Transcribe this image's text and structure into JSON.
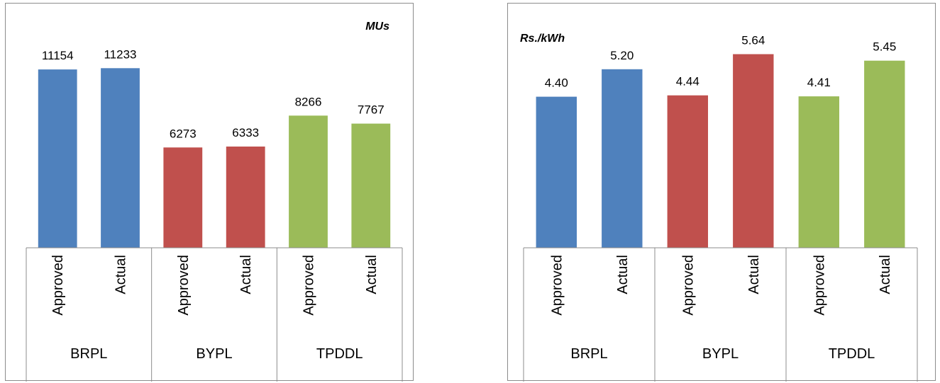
{
  "chart_data": [
    {
      "type": "bar",
      "title": "",
      "unit_label": "MUs",
      "groups": [
        "BRPL",
        "BYPL",
        "TPDDL"
      ],
      "categories": [
        "Approved",
        "Actual",
        "Approved",
        "Actual",
        "Approved",
        "Actual"
      ],
      "values": [
        11154,
        11233,
        6273,
        6333,
        8266,
        7767
      ],
      "value_labels": [
        "11154",
        "11233",
        "6273",
        "6333",
        "8266",
        "7767"
      ],
      "colors": [
        "#4F81BD",
        "#4F81BD",
        "#C0504D",
        "#C0504D",
        "#9BBB59",
        "#9BBB59"
      ],
      "ylim": [
        0,
        12000
      ],
      "grid": false,
      "legend": "none"
    },
    {
      "type": "bar",
      "title": "",
      "unit_label": "Rs./kWh",
      "groups": [
        "BRPL",
        "BYPL",
        "TPDDL"
      ],
      "categories": [
        "Approved",
        "Actual",
        "Approved",
        "Actual",
        "Approved",
        "Actual"
      ],
      "values": [
        4.4,
        5.2,
        4.44,
        5.64,
        4.41,
        5.45
      ],
      "value_labels": [
        "4.40",
        "5.20",
        "4.44",
        "5.64",
        "4.41",
        "5.45"
      ],
      "colors": [
        "#4F81BD",
        "#4F81BD",
        "#C0504D",
        "#C0504D",
        "#9BBB59",
        "#9BBB59"
      ],
      "ylim": [
        0,
        6
      ],
      "grid": false,
      "legend": "none"
    }
  ]
}
